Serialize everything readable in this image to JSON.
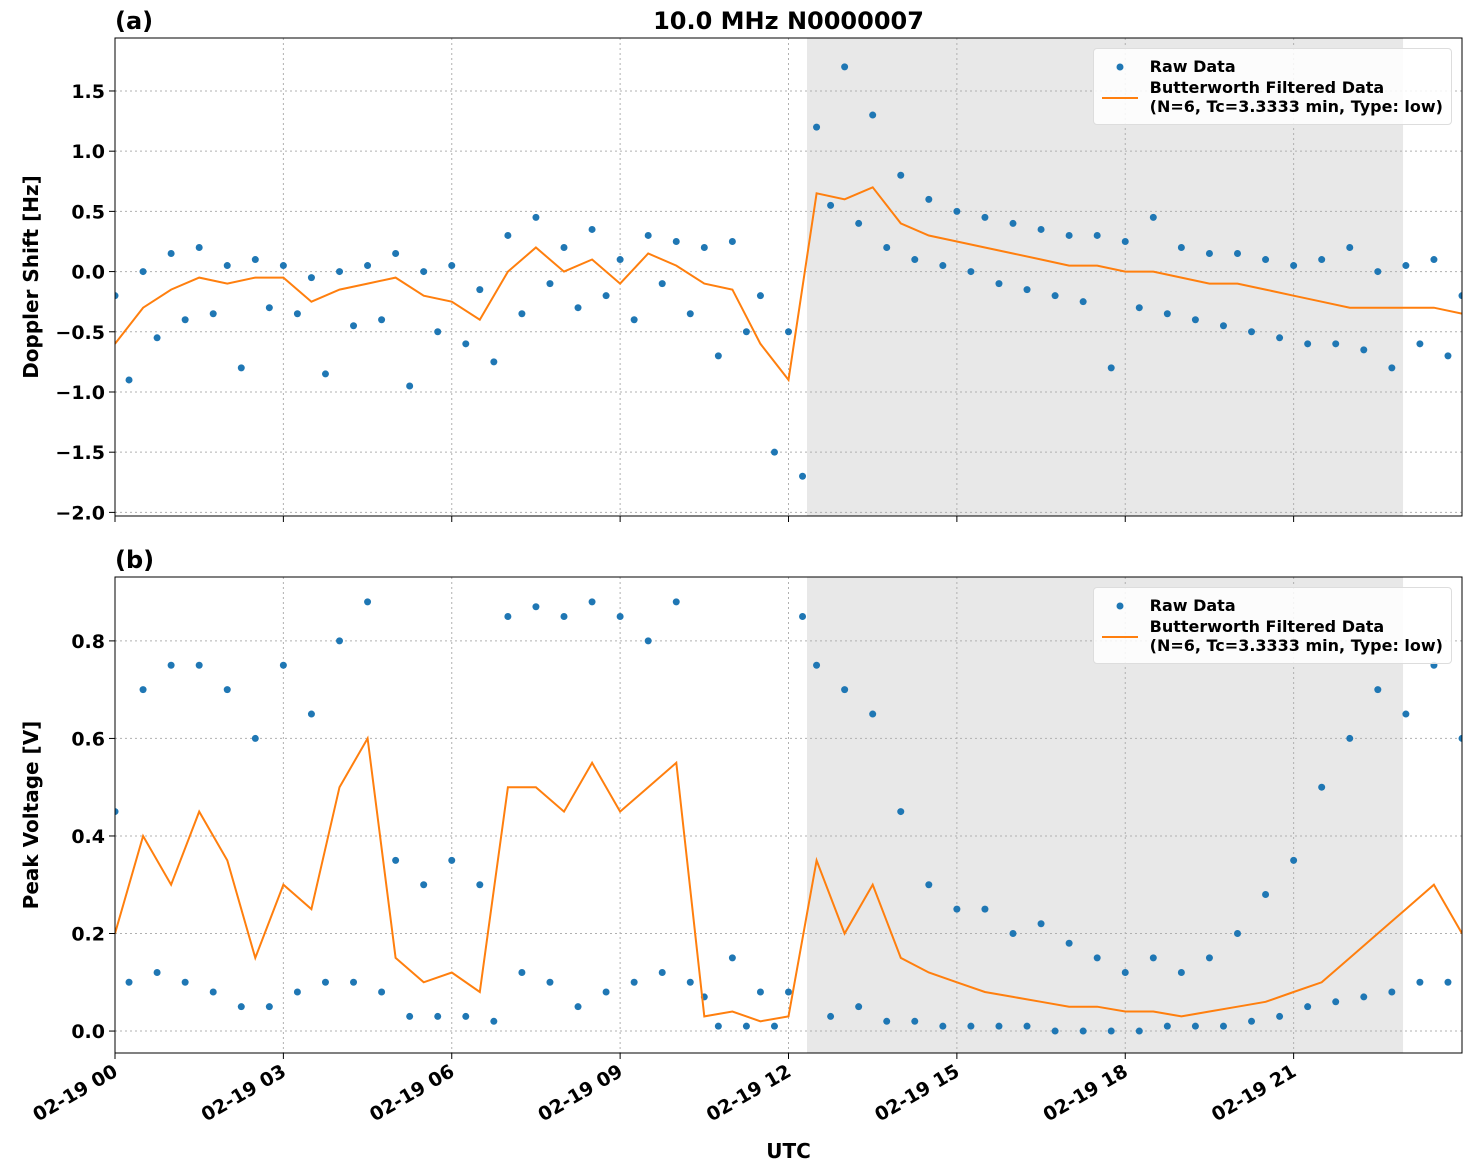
{
  "chart_data": [
    {
      "type": "line",
      "title": "10.0 MHz N0000007",
      "panel_label": "(a)",
      "ylabel": "Doppler Shift [Hz]",
      "xlim": [
        0,
        24
      ],
      "xticks": [
        0,
        3,
        6,
        9,
        12,
        15,
        18,
        21
      ],
      "ylim": [
        -2.03,
        1.94
      ],
      "yticks": [
        {
          "value": -2.0,
          "label": "−2.0"
        },
        {
          "value": -1.5,
          "label": "−1.5"
        },
        {
          "value": -1.0,
          "label": "−1.0"
        },
        {
          "value": -0.5,
          "label": "−0.5"
        },
        {
          "value": 0.0,
          "label": "0.0"
        },
        {
          "value": 0.5,
          "label": "0.5"
        },
        {
          "value": 1.0,
          "label": "1.0"
        },
        {
          "value": 1.5,
          "label": "1.5"
        }
      ],
      "grid": true,
      "legend": "upper right",
      "shaded_span": [
        12.33,
        22.95
      ],
      "shaded_color": "#e8e8e8",
      "series": [
        {
          "name": "Raw Data",
          "style": "markers",
          "color": "#1f77b4",
          "x": [
            0,
            0.25,
            0.5,
            0.75,
            1,
            1.25,
            1.5,
            1.75,
            2,
            2.25,
            2.5,
            2.75,
            3,
            3.25,
            3.5,
            3.75,
            4,
            4.25,
            4.5,
            4.75,
            5,
            5.25,
            5.5,
            5.75,
            6,
            6.25,
            6.5,
            6.75,
            7,
            7.25,
            7.5,
            7.75,
            8,
            8.25,
            8.5,
            8.75,
            9,
            9.25,
            9.5,
            9.75,
            10,
            10.25,
            10.5,
            10.75,
            11,
            11.25,
            11.5,
            11.75,
            12,
            12.25,
            12.5,
            12.75,
            13,
            13.25,
            13.5,
            13.75,
            14,
            14.25,
            14.5,
            14.75,
            15,
            15.25,
            15.5,
            15.75,
            16,
            16.25,
            16.5,
            16.75,
            17,
            17.25,
            17.5,
            17.75,
            18,
            18.25,
            18.5,
            18.75,
            19,
            19.25,
            19.5,
            19.75,
            20,
            20.25,
            20.5,
            20.75,
            21,
            21.25,
            21.5,
            21.75,
            22,
            22.25,
            22.5,
            22.75,
            23,
            23.25,
            23.5,
            23.75,
            24
          ],
          "values": [
            -0.2,
            -0.9,
            0.0,
            -0.55,
            0.15,
            -0.4,
            0.2,
            -0.35,
            0.05,
            -0.8,
            0.1,
            -0.3,
            0.05,
            -0.35,
            -0.05,
            -0.85,
            0.0,
            -0.45,
            0.05,
            -0.4,
            0.15,
            -0.95,
            0.0,
            -0.5,
            0.05,
            -0.6,
            -0.15,
            -0.75,
            0.3,
            -0.35,
            0.45,
            -0.1,
            0.2,
            -0.3,
            0.35,
            -0.2,
            0.1,
            -0.4,
            0.3,
            -0.1,
            0.25,
            -0.35,
            0.2,
            -0.7,
            0.25,
            -0.5,
            -0.2,
            -1.5,
            -0.5,
            -1.7,
            1.2,
            0.55,
            1.7,
            0.4,
            1.3,
            0.2,
            0.8,
            0.1,
            0.6,
            0.05,
            0.5,
            0.0,
            0.45,
            -0.1,
            0.4,
            -0.15,
            0.35,
            -0.2,
            0.3,
            -0.25,
            0.3,
            -0.8,
            0.25,
            -0.3,
            0.45,
            -0.35,
            0.2,
            -0.4,
            0.15,
            -0.45,
            0.15,
            -0.5,
            0.1,
            -0.55,
            0.05,
            -0.6,
            0.1,
            -0.6,
            0.2,
            -0.65,
            0.0,
            -0.8,
            0.05,
            -0.6,
            0.1,
            -0.7,
            -0.2
          ]
        },
        {
          "name": "Butterworth Filtered Data\n(N=6, Tc=3.3333 min, Type: low)",
          "style": "line",
          "color": "#ff7f0e",
          "x": [
            0,
            0.5,
            1,
            1.5,
            2,
            2.5,
            3,
            3.5,
            4,
            4.5,
            5,
            5.5,
            6,
            6.5,
            7,
            7.5,
            8,
            8.5,
            9,
            9.5,
            10,
            10.5,
            11,
            11.5,
            12,
            12.5,
            13,
            13.5,
            14,
            14.5,
            15,
            15.5,
            16,
            16.5,
            17,
            17.5,
            18,
            18.5,
            19,
            19.5,
            20,
            20.5,
            21,
            21.5,
            22,
            22.5,
            23,
            23.5,
            24
          ],
          "values": [
            -0.6,
            -0.3,
            -0.15,
            -0.05,
            -0.1,
            -0.05,
            -0.05,
            -0.25,
            -0.15,
            -0.1,
            -0.05,
            -0.2,
            -0.25,
            -0.4,
            0.0,
            0.2,
            0.0,
            0.1,
            -0.1,
            0.15,
            0.05,
            -0.1,
            -0.15,
            -0.6,
            -0.9,
            0.65,
            0.6,
            0.7,
            0.4,
            0.3,
            0.25,
            0.2,
            0.15,
            0.1,
            0.05,
            0.05,
            0.0,
            0.0,
            -0.05,
            -0.1,
            -0.1,
            -0.15,
            -0.2,
            -0.25,
            -0.3,
            -0.3,
            -0.3,
            -0.3,
            -0.35
          ]
        }
      ]
    },
    {
      "type": "line",
      "panel_label": "(b)",
      "ylabel": "Peak Voltage [V]",
      "xlabel": "UTC",
      "xlim": [
        0,
        24
      ],
      "xticks": [
        {
          "value": 0,
          "label": "02-19 00"
        },
        {
          "value": 3,
          "label": "02-19 03"
        },
        {
          "value": 6,
          "label": "02-19 06"
        },
        {
          "value": 9,
          "label": "02-19 09"
        },
        {
          "value": 12,
          "label": "02-19 12"
        },
        {
          "value": 15,
          "label": "02-19 15"
        },
        {
          "value": 18,
          "label": "02-19 18"
        },
        {
          "value": 21,
          "label": "02-19 21"
        }
      ],
      "ylim": [
        -0.045,
        0.931
      ],
      "yticks": [
        {
          "value": 0.0,
          "label": "0.0"
        },
        {
          "value": 0.2,
          "label": "0.2"
        },
        {
          "value": 0.4,
          "label": "0.4"
        },
        {
          "value": 0.6,
          "label": "0.6"
        },
        {
          "value": 0.8,
          "label": "0.8"
        }
      ],
      "grid": true,
      "legend": "upper right",
      "shaded_span": [
        12.33,
        22.95
      ],
      "shaded_color": "#e8e8e8",
      "series": [
        {
          "name": "Raw Data",
          "style": "markers",
          "color": "#1f77b4",
          "x": [
            0,
            0.25,
            0.5,
            0.75,
            1,
            1.25,
            1.5,
            1.75,
            2,
            2.25,
            2.5,
            2.75,
            3,
            3.25,
            3.5,
            3.75,
            4,
            4.25,
            4.5,
            4.75,
            5,
            5.25,
            5.5,
            5.75,
            6,
            6.25,
            6.5,
            6.75,
            7,
            7.25,
            7.5,
            7.75,
            8,
            8.25,
            8.5,
            8.75,
            9,
            9.25,
            9.5,
            9.75,
            10,
            10.25,
            10.5,
            10.75,
            11,
            11.25,
            11.5,
            11.75,
            12,
            12.25,
            12.5,
            12.75,
            13,
            13.25,
            13.5,
            13.75,
            14,
            14.25,
            14.5,
            14.75,
            15,
            15.25,
            15.5,
            15.75,
            16,
            16.25,
            16.5,
            16.75,
            17,
            17.25,
            17.5,
            17.75,
            18,
            18.25,
            18.5,
            18.75,
            19,
            19.25,
            19.5,
            19.75,
            20,
            20.25,
            20.5,
            20.75,
            21,
            21.25,
            21.5,
            21.75,
            22,
            22.25,
            22.5,
            22.75,
            23,
            23.25,
            23.5,
            23.75,
            24
          ],
          "values": [
            0.45,
            0.1,
            0.7,
            0.12,
            0.75,
            0.1,
            0.75,
            0.08,
            0.7,
            0.05,
            0.6,
            0.05,
            0.75,
            0.08,
            0.65,
            0.1,
            0.8,
            0.1,
            0.88,
            0.08,
            0.35,
            0.03,
            0.3,
            0.03,
            0.35,
            0.03,
            0.3,
            0.02,
            0.85,
            0.12,
            0.87,
            0.1,
            0.85,
            0.05,
            0.88,
            0.08,
            0.85,
            0.1,
            0.8,
            0.12,
            0.88,
            0.1,
            0.07,
            0.01,
            0.15,
            0.01,
            0.08,
            0.01,
            0.08,
            0.85,
            0.75,
            0.03,
            0.7,
            0.05,
            0.65,
            0.02,
            0.45,
            0.02,
            0.3,
            0.01,
            0.25,
            0.01,
            0.25,
            0.01,
            0.2,
            0.01,
            0.22,
            0.0,
            0.18,
            0.0,
            0.15,
            0.0,
            0.12,
            0.0,
            0.15,
            0.01,
            0.12,
            0.01,
            0.15,
            0.01,
            0.2,
            0.02,
            0.28,
            0.03,
            0.35,
            0.05,
            0.5,
            0.06,
            0.6,
            0.07,
            0.7,
            0.08,
            0.65,
            0.1,
            0.75,
            0.1,
            0.6
          ]
        },
        {
          "name": "Butterworth Filtered Data\n(N=6, Tc=3.3333 min, Type: low)",
          "style": "line",
          "color": "#ff7f0e",
          "x": [
            0,
            0.5,
            1,
            1.5,
            2,
            2.5,
            3,
            3.5,
            4,
            4.5,
            5,
            5.5,
            6,
            6.5,
            7,
            7.5,
            8,
            8.5,
            9,
            9.5,
            10,
            10.5,
            11,
            11.5,
            12,
            12.5,
            13,
            13.5,
            14,
            14.5,
            15,
            15.5,
            16,
            16.5,
            17,
            17.5,
            18,
            18.5,
            19,
            19.5,
            20,
            20.5,
            21,
            21.5,
            22,
            22.5,
            23,
            23.5,
            24
          ],
          "values": [
            0.2,
            0.4,
            0.3,
            0.45,
            0.35,
            0.15,
            0.3,
            0.25,
            0.5,
            0.6,
            0.15,
            0.1,
            0.12,
            0.08,
            0.5,
            0.5,
            0.45,
            0.55,
            0.45,
            0.5,
            0.55,
            0.03,
            0.04,
            0.02,
            0.03,
            0.35,
            0.2,
            0.3,
            0.15,
            0.12,
            0.1,
            0.08,
            0.07,
            0.06,
            0.05,
            0.05,
            0.04,
            0.04,
            0.03,
            0.04,
            0.05,
            0.06,
            0.08,
            0.1,
            0.15,
            0.2,
            0.25,
            0.3,
            0.2
          ]
        }
      ]
    }
  ]
}
